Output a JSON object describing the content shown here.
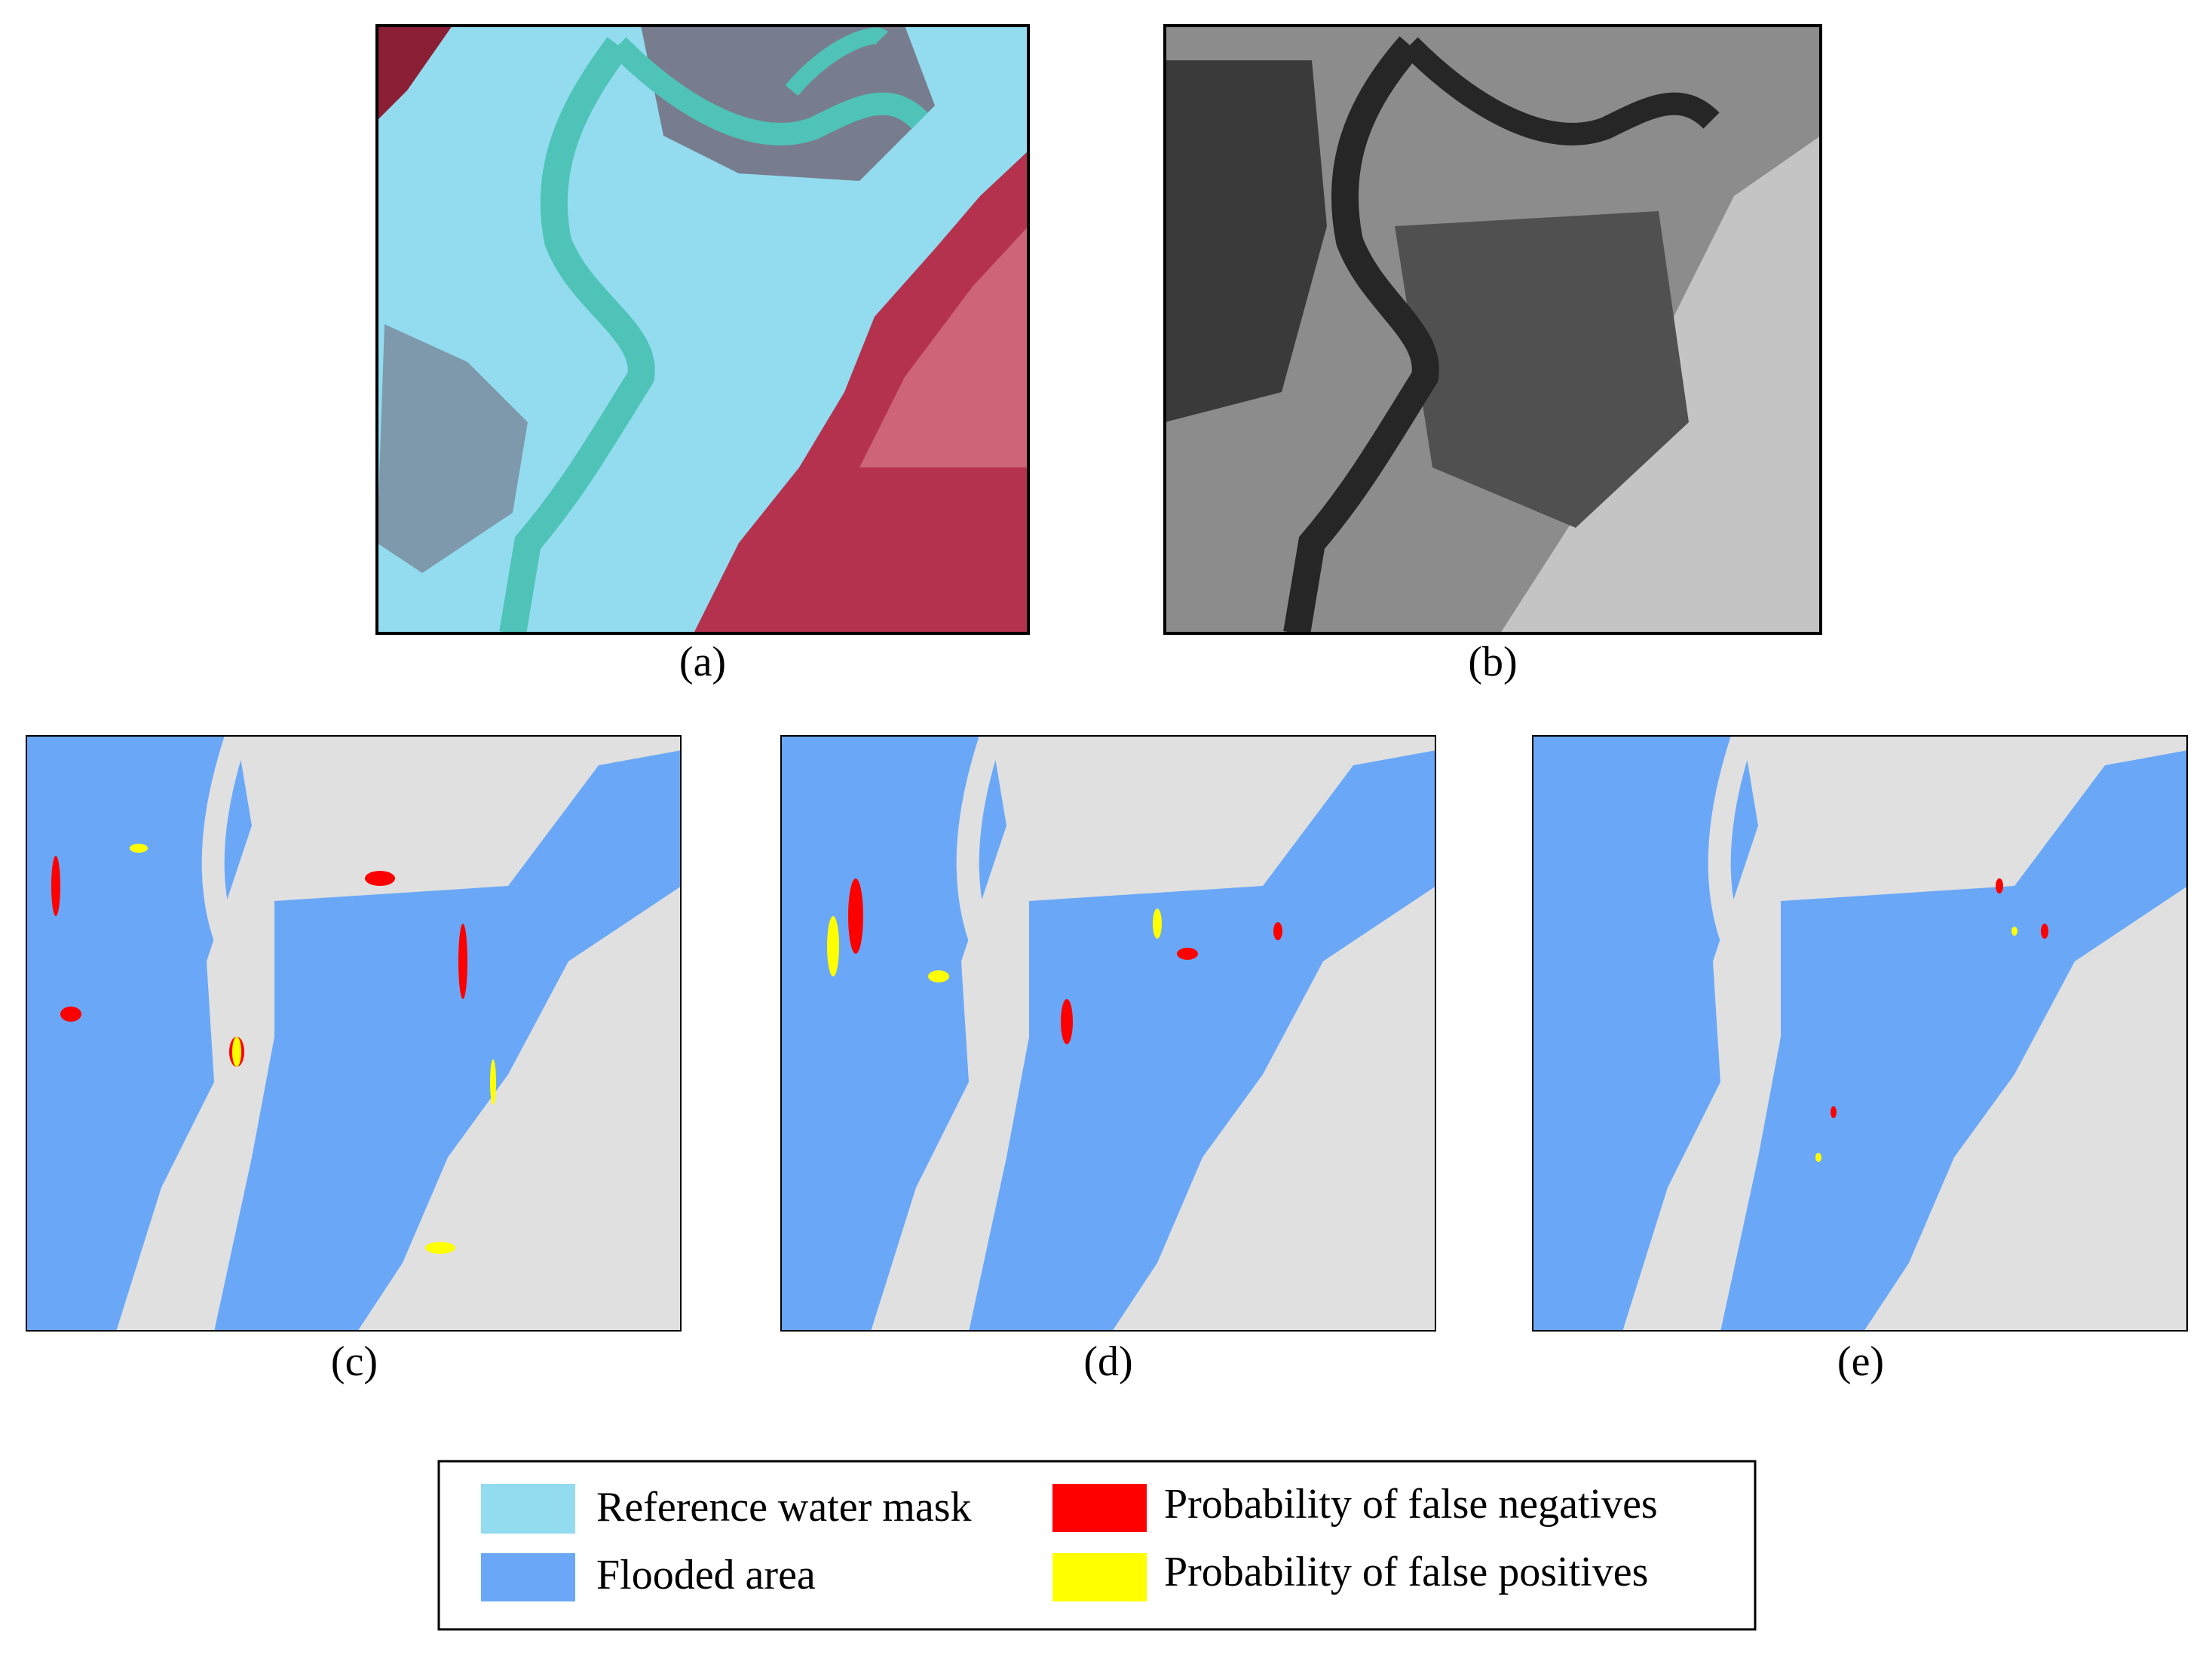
{
  "panels": [
    {
      "label": "(a)"
    },
    {
      "label": "(b)"
    },
    {
      "label": "(c)"
    },
    {
      "label": "(d)"
    },
    {
      "label": "(e)"
    }
  ],
  "legend": {
    "items": [
      {
        "label": "Reference water mask",
        "color": "#93dcef"
      },
      {
        "label": "Flooded area",
        "color": "#6aa8f7"
      },
      {
        "label": "Probability of false negatives",
        "color": "#ff0000"
      },
      {
        "label": "Probability of false positives",
        "color": "#ffff00"
      }
    ]
  }
}
